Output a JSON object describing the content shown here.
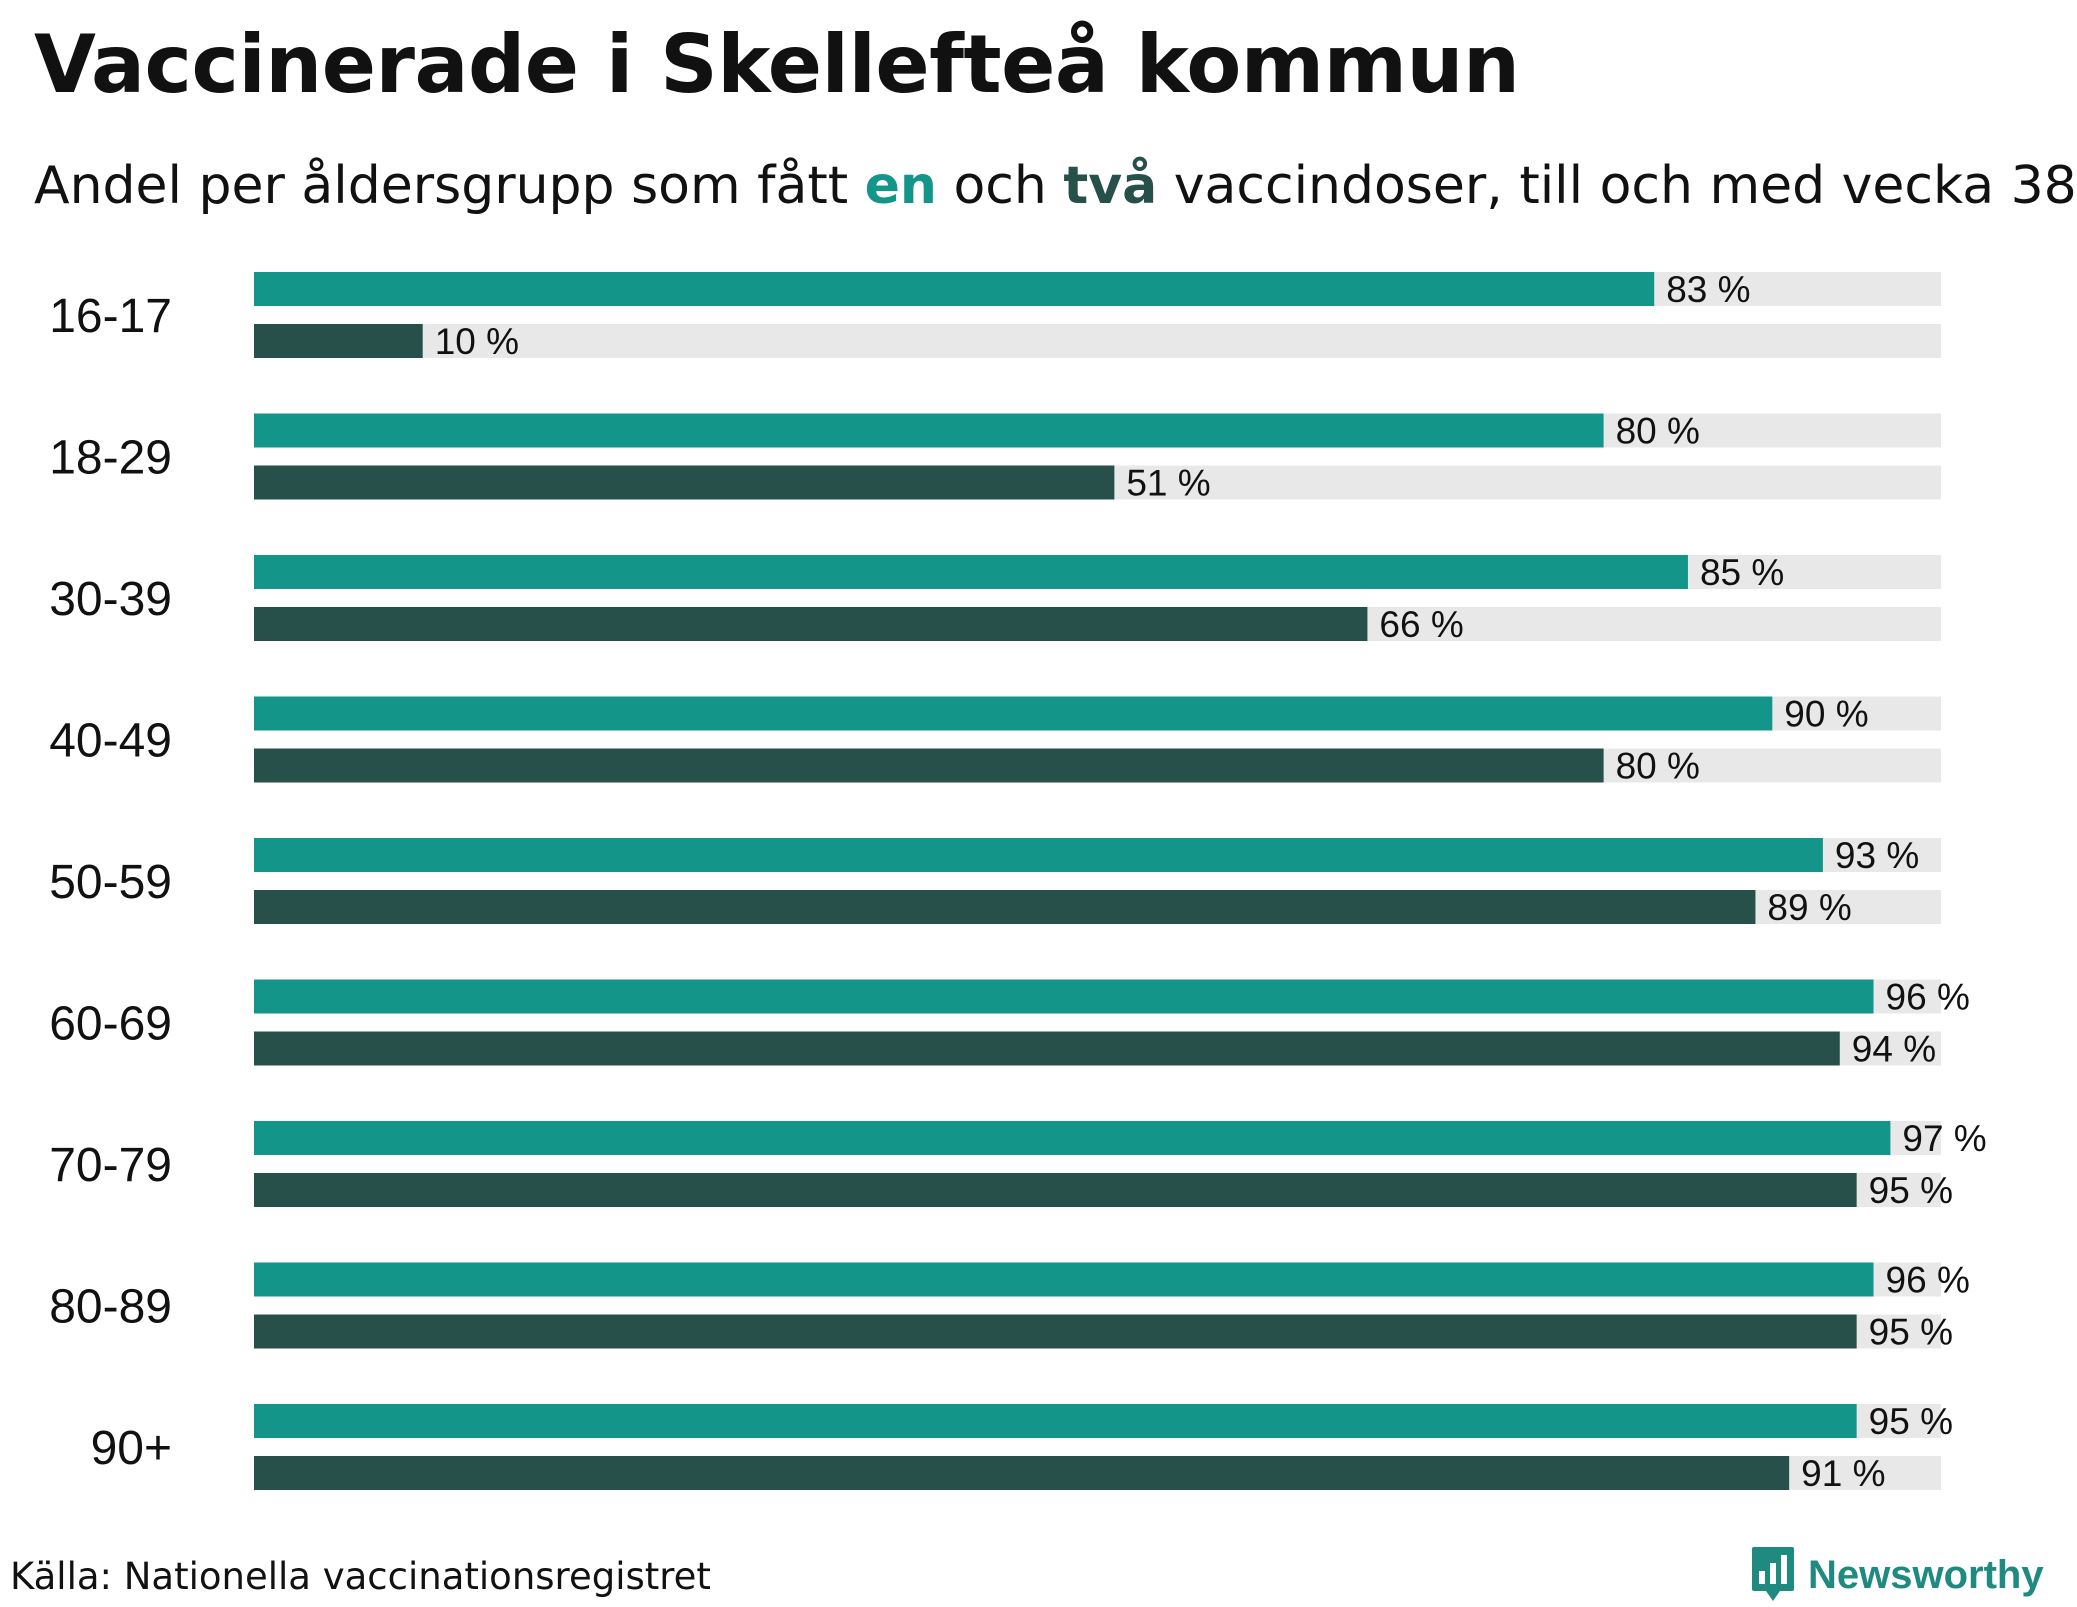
{
  "title": "Vaccinerade i Skellefteå kommun",
  "subtitle": {
    "part1": "Andel per åldersgrupp som fått ",
    "keyword_one": "en",
    "part2": " och ",
    "keyword_two": "två",
    "part3": " vaccindoser, till och med vecka 38"
  },
  "source": "Källa: Nationella vaccinationsregistret",
  "brand": {
    "name": "Newsworthy",
    "color": "#1f8a80"
  },
  "colors": {
    "one_dose": "#14958a",
    "two_doses": "#27504a",
    "track": "#e8e8e8"
  },
  "chart_data": {
    "type": "bar",
    "orientation": "horizontal",
    "categories": [
      "16-17",
      "18-29",
      "30-39",
      "40-49",
      "50-59",
      "60-69",
      "70-79",
      "80-89",
      "90+"
    ],
    "series": [
      {
        "key": "one_dose",
        "values": [
          83,
          80,
          85,
          90,
          93,
          96,
          97,
          96,
          95
        ],
        "labels": [
          "83 %",
          "80 %",
          "85 %",
          "90 %",
          "93 %",
          "96 %",
          "97 %",
          "96 %",
          "95 %"
        ]
      },
      {
        "key": "two_doses",
        "values": [
          10,
          51,
          66,
          80,
          89,
          94,
          95,
          95,
          91
        ],
        "labels": [
          "10 %",
          "51 %",
          "66 %",
          "80 %",
          "89 %",
          "94 %",
          "95 %",
          "95 %",
          "91 %"
        ]
      }
    ],
    "xlim": [
      0,
      100
    ],
    "unit": "%",
    "grid": false
  }
}
